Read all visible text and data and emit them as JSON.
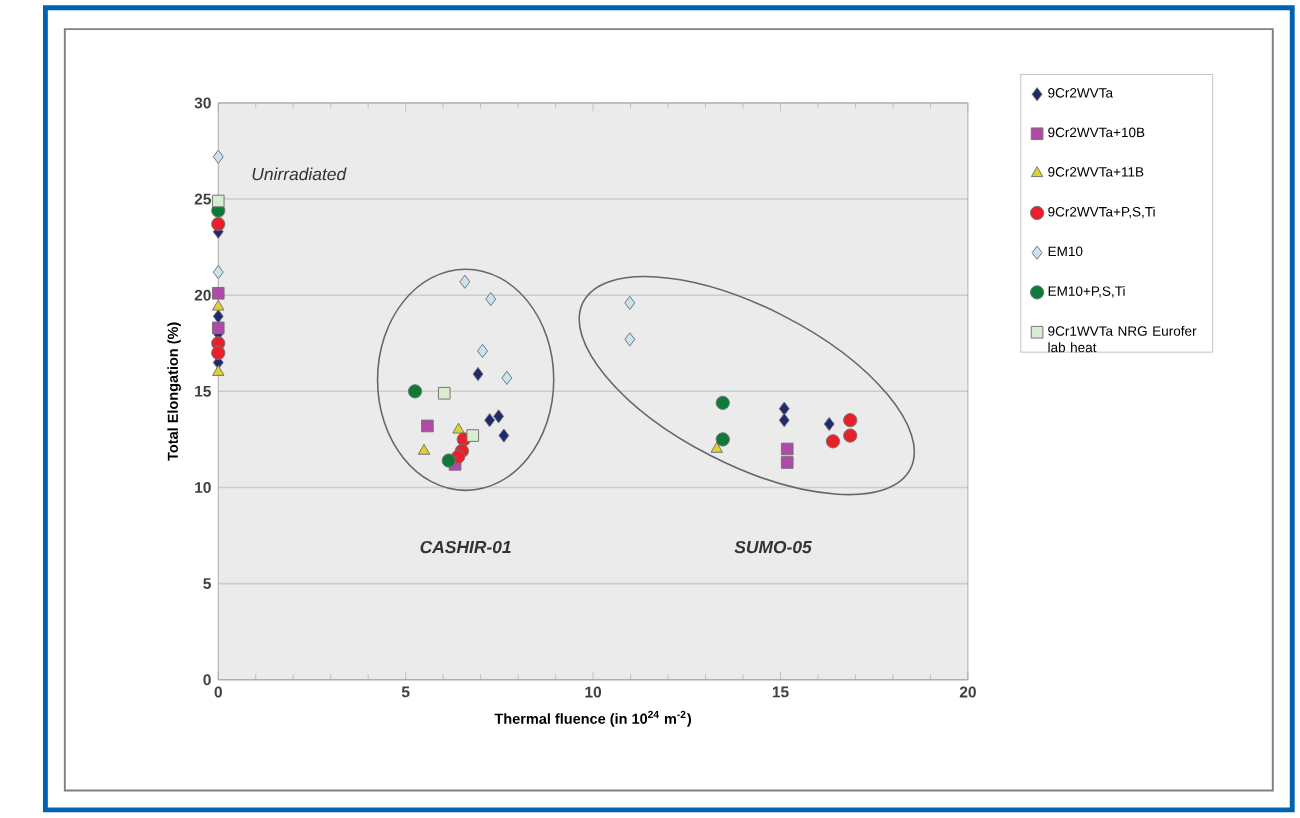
{
  "chart_data": {
    "type": "scatter",
    "xlabel": "Thermal fluence (in 10$^{24}$ m$^{-2}$)",
    "ylabel": "Total Elongation (%)",
    "xlim": [
      0,
      20
    ],
    "xticks": [
      0,
      5,
      10,
      15,
      20
    ],
    "ylim": [
      0,
      30
    ],
    "yticks": [
      0,
      5,
      10,
      15,
      20,
      25,
      30
    ],
    "grid": "y",
    "legend": "right",
    "annotations": [
      "Unirradiated",
      "CASHIR-01",
      "SUMO-05"
    ],
    "series": [
      {
        "name": "9Cr2WVTa",
        "color": "#1f2a6e",
        "marker": "diamond",
        "x": [
          0,
          0,
          0,
          0,
          6.93,
          7.24,
          7.48,
          7.62,
          15.1,
          15.1,
          16.3
        ],
        "values": [
          23.3,
          18.9,
          18.0,
          16.5,
          15.9,
          13.5,
          13.7,
          12.7,
          14.1,
          13.5,
          13.3
        ]
      },
      {
        "name": "9Cr2WVTa+10B",
        "color": "#b04aa8",
        "marker": "square",
        "x": [
          0,
          0,
          5.58,
          6.32,
          15.18,
          15.18
        ],
        "values": [
          20.1,
          18.3,
          13.2,
          11.2,
          12.0,
          11.3
        ]
      },
      {
        "name": "9Cr2WVTa+11B",
        "color": "#e0d030",
        "marker": "triangle",
        "x": [
          0,
          0,
          5.49,
          6.41,
          13.3
        ],
        "values": [
          19.4,
          16.0,
          11.9,
          13.0,
          12.0
        ]
      },
      {
        "name": "9Cr2WVTa+P,S,Ti",
        "color": "#e8202a",
        "marker": "circle",
        "x": [
          0,
          0,
          0,
          6.55,
          6.5,
          6.4,
          16.4,
          16.86,
          16.86
        ],
        "values": [
          23.7,
          17.5,
          17.0,
          12.5,
          11.9,
          11.6,
          12.4,
          13.5,
          12.7
        ]
      },
      {
        "name": "EM10",
        "color": "#c8e4f0",
        "marker": "diamond",
        "x": [
          0,
          0,
          6.58,
          7.27,
          7.05,
          7.7,
          10.98,
          10.98
        ],
        "values": [
          27.2,
          21.2,
          20.7,
          19.8,
          17.1,
          15.7,
          19.6,
          17.7
        ]
      },
      {
        "name": "EM10+P,S,Ti",
        "color": "#0e7a3a",
        "marker": "circle",
        "x": [
          0,
          5.25,
          6.15,
          13.46,
          13.46
        ],
        "values": [
          24.4,
          15.0,
          11.4,
          14.4,
          12.5
        ]
      },
      {
        "name": "9Cr1WVTa NRG Eurofer lab heat",
        "color": "#d8ecd0",
        "marker": "square",
        "x": [
          0,
          6.03,
          6.79
        ],
        "values": [
          24.9,
          14.9,
          12.7
        ]
      }
    ]
  }
}
